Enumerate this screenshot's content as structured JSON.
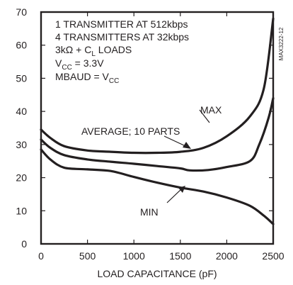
{
  "chart_data": {
    "type": "line",
    "xlabel": "LOAD CAPACITANCE (pF)",
    "ylabel": "",
    "xlim": [
      0,
      2500
    ],
    "ylim": [
      0,
      70
    ],
    "x_ticks": [
      "0",
      "500",
      "1000",
      "1500",
      "2000",
      "2500"
    ],
    "y_ticks": [
      "0",
      "10",
      "20",
      "30",
      "40",
      "50",
      "60",
      "70"
    ],
    "grid": false,
    "conditions": [
      "1 TRANSMITTER AT 512kbps",
      "4 TRANSMITTERS AT 32kbps",
      "3kΩ + CL LOADS",
      "VCC = 3.3V",
      "MBAUD = VCC"
    ],
    "figure_id": "MAX3222-12",
    "series": [
      {
        "name": "MAX",
        "x": [
          0,
          100,
          250,
          500,
          750,
          1000,
          1250,
          1500,
          1750,
          2000,
          2250,
          2400,
          2500
        ],
        "y": [
          34.5,
          32,
          29.5,
          28.2,
          27.8,
          27.5,
          27.5,
          27.8,
          29,
          32.5,
          38.5,
          47,
          68
        ]
      },
      {
        "name": "AVERAGE; 10 PARTS",
        "x": [
          0,
          100,
          250,
          500,
          750,
          1000,
          1250,
          1500,
          1600,
          1800,
          2000,
          2250,
          2350,
          2450,
          2500
        ],
        "y": [
          31.5,
          29,
          26.8,
          25.5,
          24.8,
          24.2,
          23.5,
          22.8,
          22.2,
          22.3,
          23.2,
          25,
          30,
          38,
          44
        ]
      },
      {
        "name": "MIN",
        "x": [
          0,
          100,
          250,
          500,
          750,
          1000,
          1250,
          1500,
          1750,
          2000,
          2250,
          2400,
          2500
        ],
        "y": [
          28.5,
          25.5,
          23,
          22.5,
          22,
          20.2,
          18.5,
          17,
          15.8,
          14,
          11.5,
          8.5,
          6
        ]
      }
    ]
  }
}
